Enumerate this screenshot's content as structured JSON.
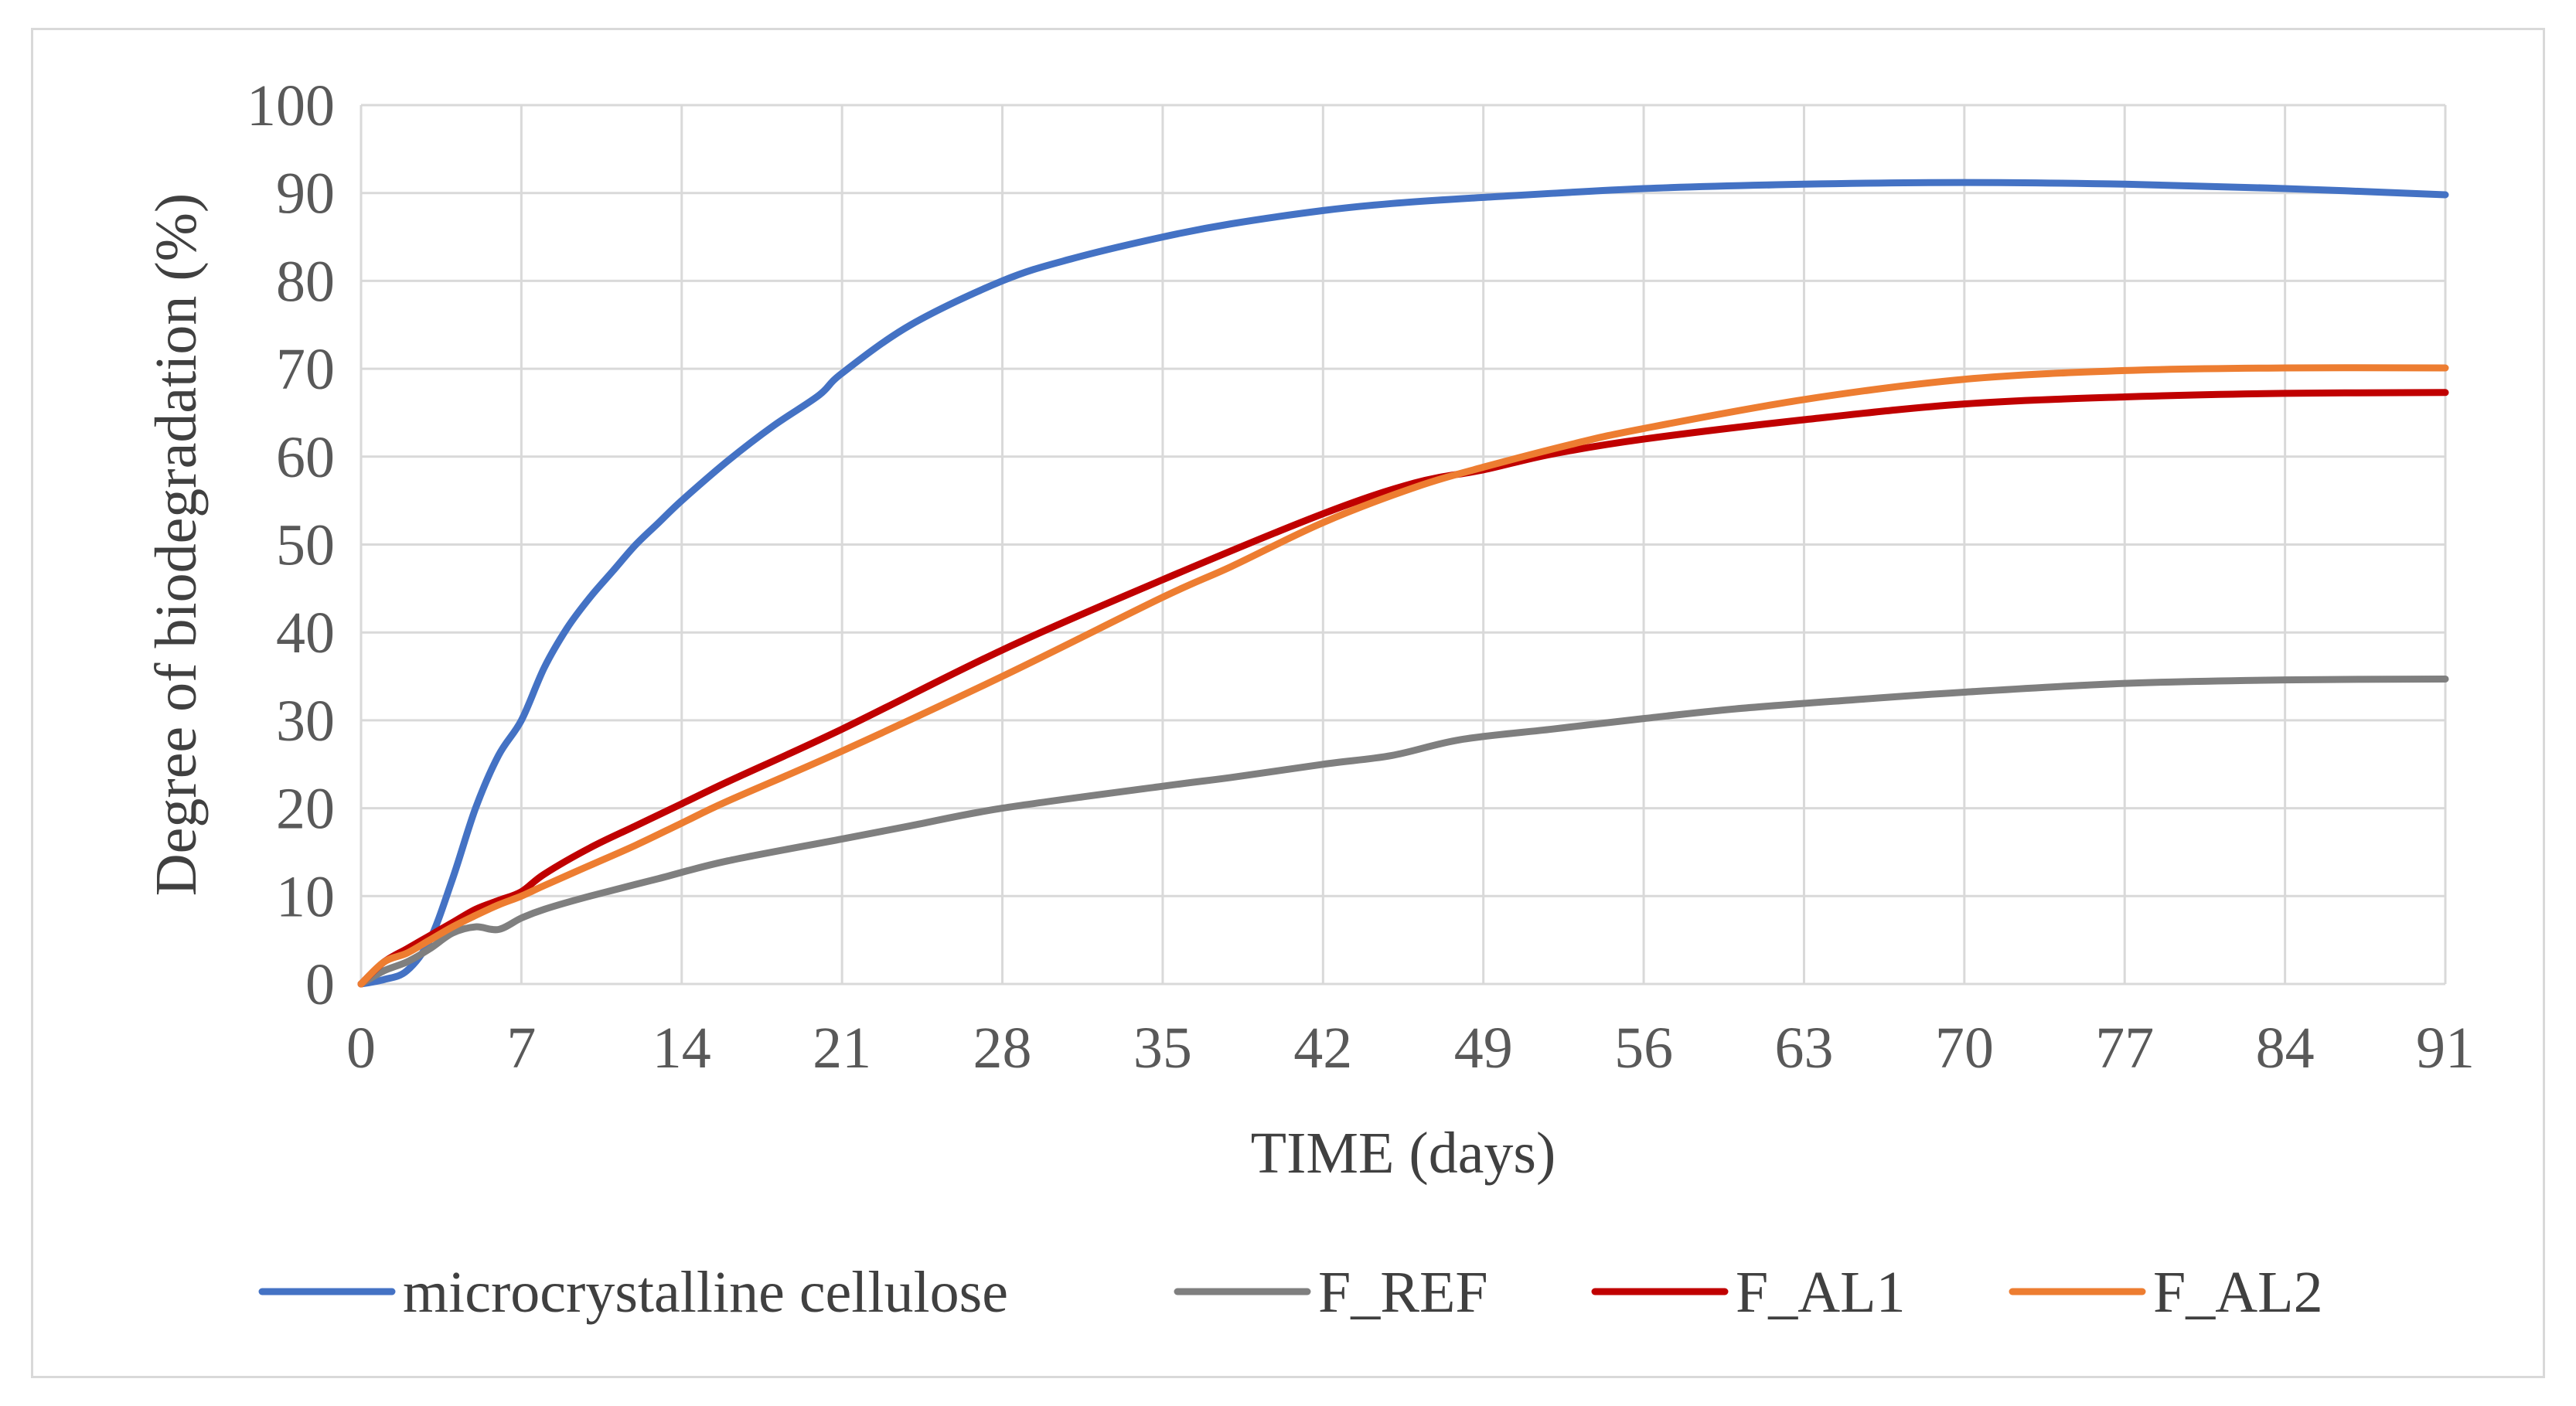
{
  "chart_data": {
    "type": "line",
    "title": "",
    "xlabel": "TIME (days)",
    "ylabel": "Degree of biodegradation (%)",
    "xlim": [
      0,
      91
    ],
    "ylim": [
      0,
      100
    ],
    "x_ticks": [
      0,
      7,
      14,
      21,
      28,
      35,
      42,
      49,
      56,
      63,
      70,
      77,
      84,
      91
    ],
    "y_ticks": [
      0,
      10,
      20,
      30,
      40,
      50,
      60,
      70,
      80,
      90,
      100
    ],
    "grid": true,
    "legend_position": "bottom",
    "series": [
      {
        "name": "microcrystalline cellulose",
        "color": "#4472c4",
        "points": [
          [
            0,
            0
          ],
          [
            1,
            0.5
          ],
          [
            2,
            1.5
          ],
          [
            3,
            5
          ],
          [
            4,
            12
          ],
          [
            5,
            20
          ],
          [
            6,
            26
          ],
          [
            7,
            30
          ],
          [
            8,
            36
          ],
          [
            9,
            40.5
          ],
          [
            10,
            44
          ],
          [
            11,
            47
          ],
          [
            12,
            50
          ],
          [
            13,
            52.5
          ],
          [
            14,
            55
          ],
          [
            16,
            59.5
          ],
          [
            18,
            63.5
          ],
          [
            20,
            67
          ],
          [
            21,
            69.5
          ],
          [
            24,
            75
          ],
          [
            28,
            80
          ],
          [
            31,
            82.5
          ],
          [
            35,
            85
          ],
          [
            38,
            86.5
          ],
          [
            42,
            88
          ],
          [
            45,
            88.8
          ],
          [
            49,
            89.5
          ],
          [
            56,
            90.5
          ],
          [
            63,
            91
          ],
          [
            70,
            91.2
          ],
          [
            77,
            91
          ],
          [
            84,
            90.5
          ],
          [
            91,
            89.8
          ]
        ]
      },
      {
        "name": "F_REF",
        "color": "#7f7f7f",
        "points": [
          [
            0,
            0
          ],
          [
            1,
            1.5
          ],
          [
            2,
            2.5
          ],
          [
            3,
            4
          ],
          [
            4,
            5.8
          ],
          [
            5,
            6.5
          ],
          [
            6,
            6.2
          ],
          [
            7,
            7.5
          ],
          [
            8,
            8.5
          ],
          [
            10,
            10
          ],
          [
            13,
            12
          ],
          [
            16,
            14
          ],
          [
            21,
            16.5
          ],
          [
            24,
            18
          ],
          [
            28,
            20
          ],
          [
            35,
            22.5
          ],
          [
            38,
            23.5
          ],
          [
            42,
            25
          ],
          [
            45,
            26
          ],
          [
            48,
            27.8
          ],
          [
            52,
            29
          ],
          [
            56,
            30.2
          ],
          [
            60,
            31.3
          ],
          [
            65,
            32.3
          ],
          [
            70,
            33.2
          ],
          [
            77,
            34.2
          ],
          [
            84,
            34.6
          ],
          [
            91,
            34.7
          ]
        ]
      },
      {
        "name": "F_AL1",
        "color": "#c00000",
        "points": [
          [
            0,
            0
          ],
          [
            1,
            2.5
          ],
          [
            2,
            4
          ],
          [
            3,
            5.5
          ],
          [
            4,
            7
          ],
          [
            5,
            8.5
          ],
          [
            6,
            9.5
          ],
          [
            7,
            10.5
          ],
          [
            8,
            12.5
          ],
          [
            10,
            15.5
          ],
          [
            12,
            18
          ],
          [
            14,
            20.5
          ],
          [
            16,
            23
          ],
          [
            21,
            29
          ],
          [
            28,
            38
          ],
          [
            35,
            46
          ],
          [
            42,
            53.5
          ],
          [
            46,
            57
          ],
          [
            49,
            58.5
          ],
          [
            52,
            60.3
          ],
          [
            56,
            62
          ],
          [
            63,
            64.2
          ],
          [
            70,
            66
          ],
          [
            77,
            66.8
          ],
          [
            84,
            67.2
          ],
          [
            91,
            67.3
          ]
        ]
      },
      {
        "name": "F_AL2",
        "color": "#ed7d31",
        "points": [
          [
            0,
            0
          ],
          [
            1,
            2.5
          ],
          [
            2,
            3.5
          ],
          [
            3,
            5
          ],
          [
            4,
            6.5
          ],
          [
            5,
            7.8
          ],
          [
            6,
            9
          ],
          [
            7,
            10
          ],
          [
            8,
            11.2
          ],
          [
            10,
            13.5
          ],
          [
            12,
            15.8
          ],
          [
            14,
            18.3
          ],
          [
            16,
            20.8
          ],
          [
            21,
            26.5
          ],
          [
            28,
            35
          ],
          [
            35,
            44
          ],
          [
            38,
            47.5
          ],
          [
            42,
            52.5
          ],
          [
            46,
            56.5
          ],
          [
            49,
            58.8
          ],
          [
            53,
            61.5
          ],
          [
            56,
            63.2
          ],
          [
            63,
            66.5
          ],
          [
            70,
            68.8
          ],
          [
            77,
            69.8
          ],
          [
            84,
            70.1
          ],
          [
            91,
            70.1
          ]
        ]
      }
    ]
  }
}
